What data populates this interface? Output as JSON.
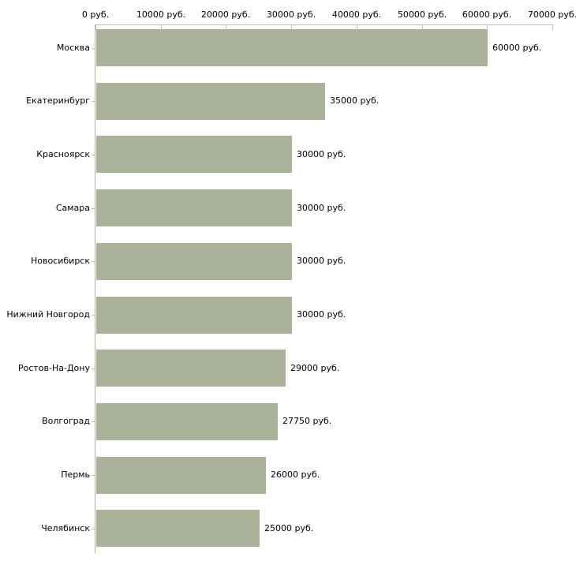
{
  "chart_data": {
    "type": "bar",
    "orientation": "horizontal",
    "title": "",
    "xlabel": "",
    "ylabel": "",
    "grid": false,
    "legend": false,
    "categories": [
      "Москва",
      "Екатеринбург",
      "Красноярск",
      "Самара",
      "Новосибирск",
      "Нижний Новгород",
      "Ростов-На-Дону",
      "Волгоград",
      "Пермь",
      "Челябинск"
    ],
    "values": [
      60000,
      35000,
      30000,
      30000,
      30000,
      30000,
      29000,
      27750,
      26000,
      25000
    ],
    "value_labels": [
      "60000 руб.",
      "35000 руб.",
      "30000 руб.",
      "30000 руб.",
      "30000 руб.",
      "30000 руб.",
      "29000 руб.",
      "27750 руб.",
      "26000 руб.",
      "25000 руб."
    ],
    "x_axis": {
      "position": "top",
      "xlim": [
        0,
        70000
      ],
      "ticks": [
        0,
        10000,
        20000,
        30000,
        40000,
        50000,
        60000,
        70000
      ],
      "tick_labels": [
        "0 руб.",
        "10000 руб.",
        "20000 руб.",
        "30000 руб.",
        "40000 руб.",
        "50000 руб.",
        "60000 руб.",
        "70000 руб."
      ]
    },
    "colors": {
      "bar_fill": "#abb29a",
      "axis_line": "#c9c6a5",
      "text": "#000000",
      "background": "#ffffff"
    }
  }
}
